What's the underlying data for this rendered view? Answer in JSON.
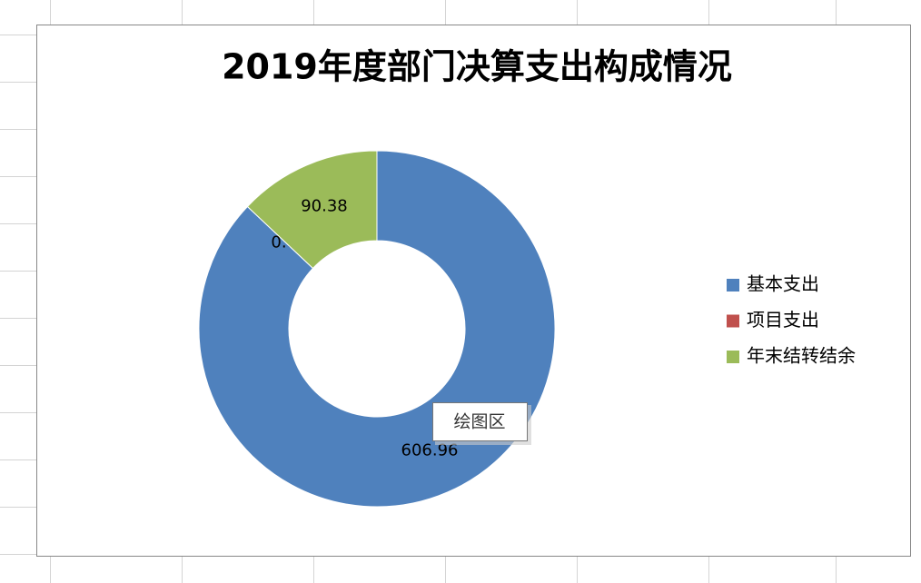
{
  "chart_data": {
    "type": "doughnut",
    "title": "2019年度部门决算支出构成情况",
    "categories": [
      "基本支出",
      "项目支出",
      "年末结转结余"
    ],
    "values": [
      606.96,
      0,
      90.38
    ],
    "value_labels": [
      "606.96",
      "0.00",
      "90.38"
    ],
    "colors": [
      "#4f81bd",
      "#c0504d",
      "#9bbb59"
    ],
    "legend": "right",
    "tooltip": "绘图区"
  }
}
